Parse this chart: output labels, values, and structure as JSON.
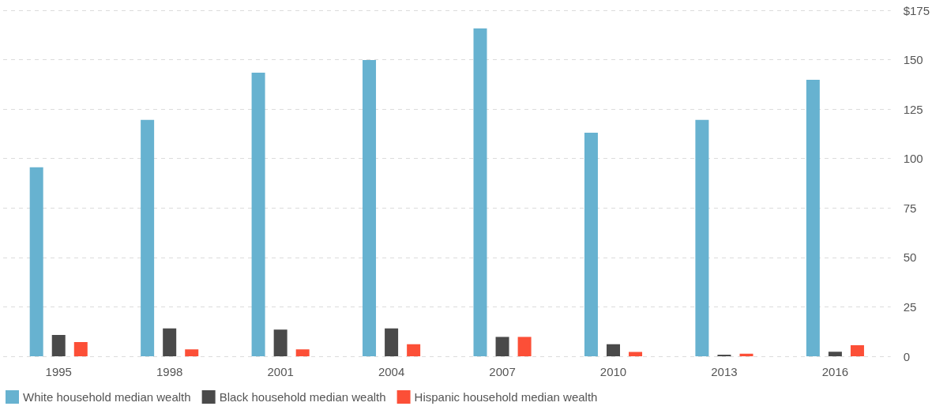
{
  "chart_data": {
    "type": "bar",
    "categories": [
      "1995",
      "1998",
      "2001",
      "2004",
      "2007",
      "2010",
      "2013",
      "2016"
    ],
    "series": [
      {
        "name": "White household median wealth",
        "color": "#67b2d0",
        "values": [
          95.6,
          119.6,
          143.4,
          149.8,
          165.8,
          113.1,
          119.6,
          139.8
        ]
      },
      {
        "name": "Black household median wealth",
        "color": "#4a4a4a",
        "values": [
          10.8,
          14.1,
          13.5,
          14.1,
          9.8,
          6.1,
          0.8,
          2.3
        ]
      },
      {
        "name": "Hispanic household median wealth",
        "color": "#fc4f37",
        "values": [
          7.2,
          3.5,
          3.5,
          6.1,
          9.8,
          2.2,
          1.3,
          5.6
        ]
      }
    ],
    "ylim": [
      0,
      175
    ],
    "yticks": [
      0,
      25,
      50,
      75,
      100,
      125,
      150,
      {
        "value": 175,
        "label": "$175"
      }
    ],
    "grid": "y",
    "legend": "bottom left"
  }
}
